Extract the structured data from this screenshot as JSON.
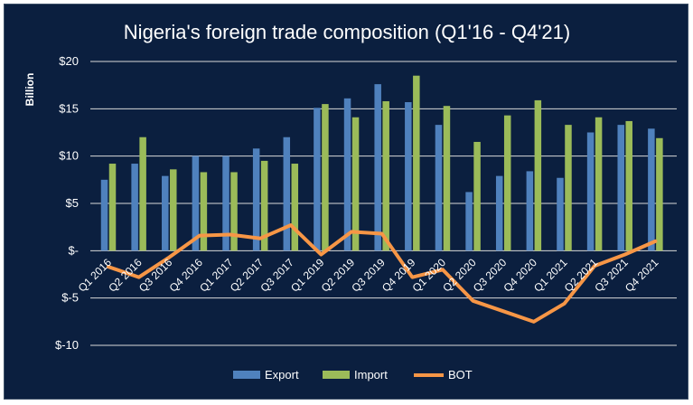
{
  "chart_data": {
    "type": "bar",
    "title": "Nigeria's foreign trade composition (Q1'16 - Q4'21)",
    "ylabel": "Billion",
    "xlabel": "",
    "ylim": [
      -10,
      20
    ],
    "yticks": [
      {
        "value": 20,
        "label": "$20"
      },
      {
        "value": 15,
        "label": "$15"
      },
      {
        "value": 10,
        "label": "$10"
      },
      {
        "value": 5,
        "label": "$5"
      },
      {
        "value": 0,
        "label": "$-"
      },
      {
        "value": -5,
        "label": "$-5"
      },
      {
        "value": -10,
        "label": "$-10"
      }
    ],
    "grid": true,
    "legend_position": "bottom",
    "categories": [
      "Q1 2016",
      "Q2 2016",
      "Q3 2016",
      "Q4 2016",
      "Q1 2017",
      "Q2 2017",
      "Q3 2017",
      "Q1 2019",
      "Q2 2019",
      "Q3 2019",
      "Q4 2019",
      "Q1 2020",
      "Q2 2020",
      "Q3 2020",
      "Q4 2020",
      "Q1 2021",
      "Q2 2021",
      "Q3 2021",
      "Q4 2021"
    ],
    "series": [
      {
        "name": "Export",
        "kind": "bar",
        "color": "#4f81bd",
        "values": [
          7.5,
          9.2,
          7.9,
          10.0,
          10.0,
          10.8,
          12.0,
          15.1,
          16.1,
          17.6,
          15.7,
          13.3,
          6.2,
          7.9,
          8.4,
          7.7,
          12.5,
          13.3,
          12.9
        ]
      },
      {
        "name": "Import",
        "kind": "bar",
        "color": "#9bbb59",
        "values": [
          9.2,
          12.0,
          8.6,
          8.3,
          8.3,
          9.5,
          9.2,
          15.5,
          14.1,
          15.8,
          18.5,
          15.3,
          11.5,
          14.3,
          15.9,
          13.3,
          14.1,
          13.7,
          11.9
        ]
      },
      {
        "name": "BOT",
        "kind": "line",
        "color": "#f79646",
        "values": [
          -1.7,
          -2.8,
          -0.7,
          1.6,
          1.7,
          1.3,
          2.7,
          -0.4,
          2.0,
          1.8,
          -2.8,
          -2.0,
          -5.3,
          -6.4,
          -7.5,
          -5.6,
          -1.6,
          -0.4,
          1.0
        ]
      }
    ]
  }
}
